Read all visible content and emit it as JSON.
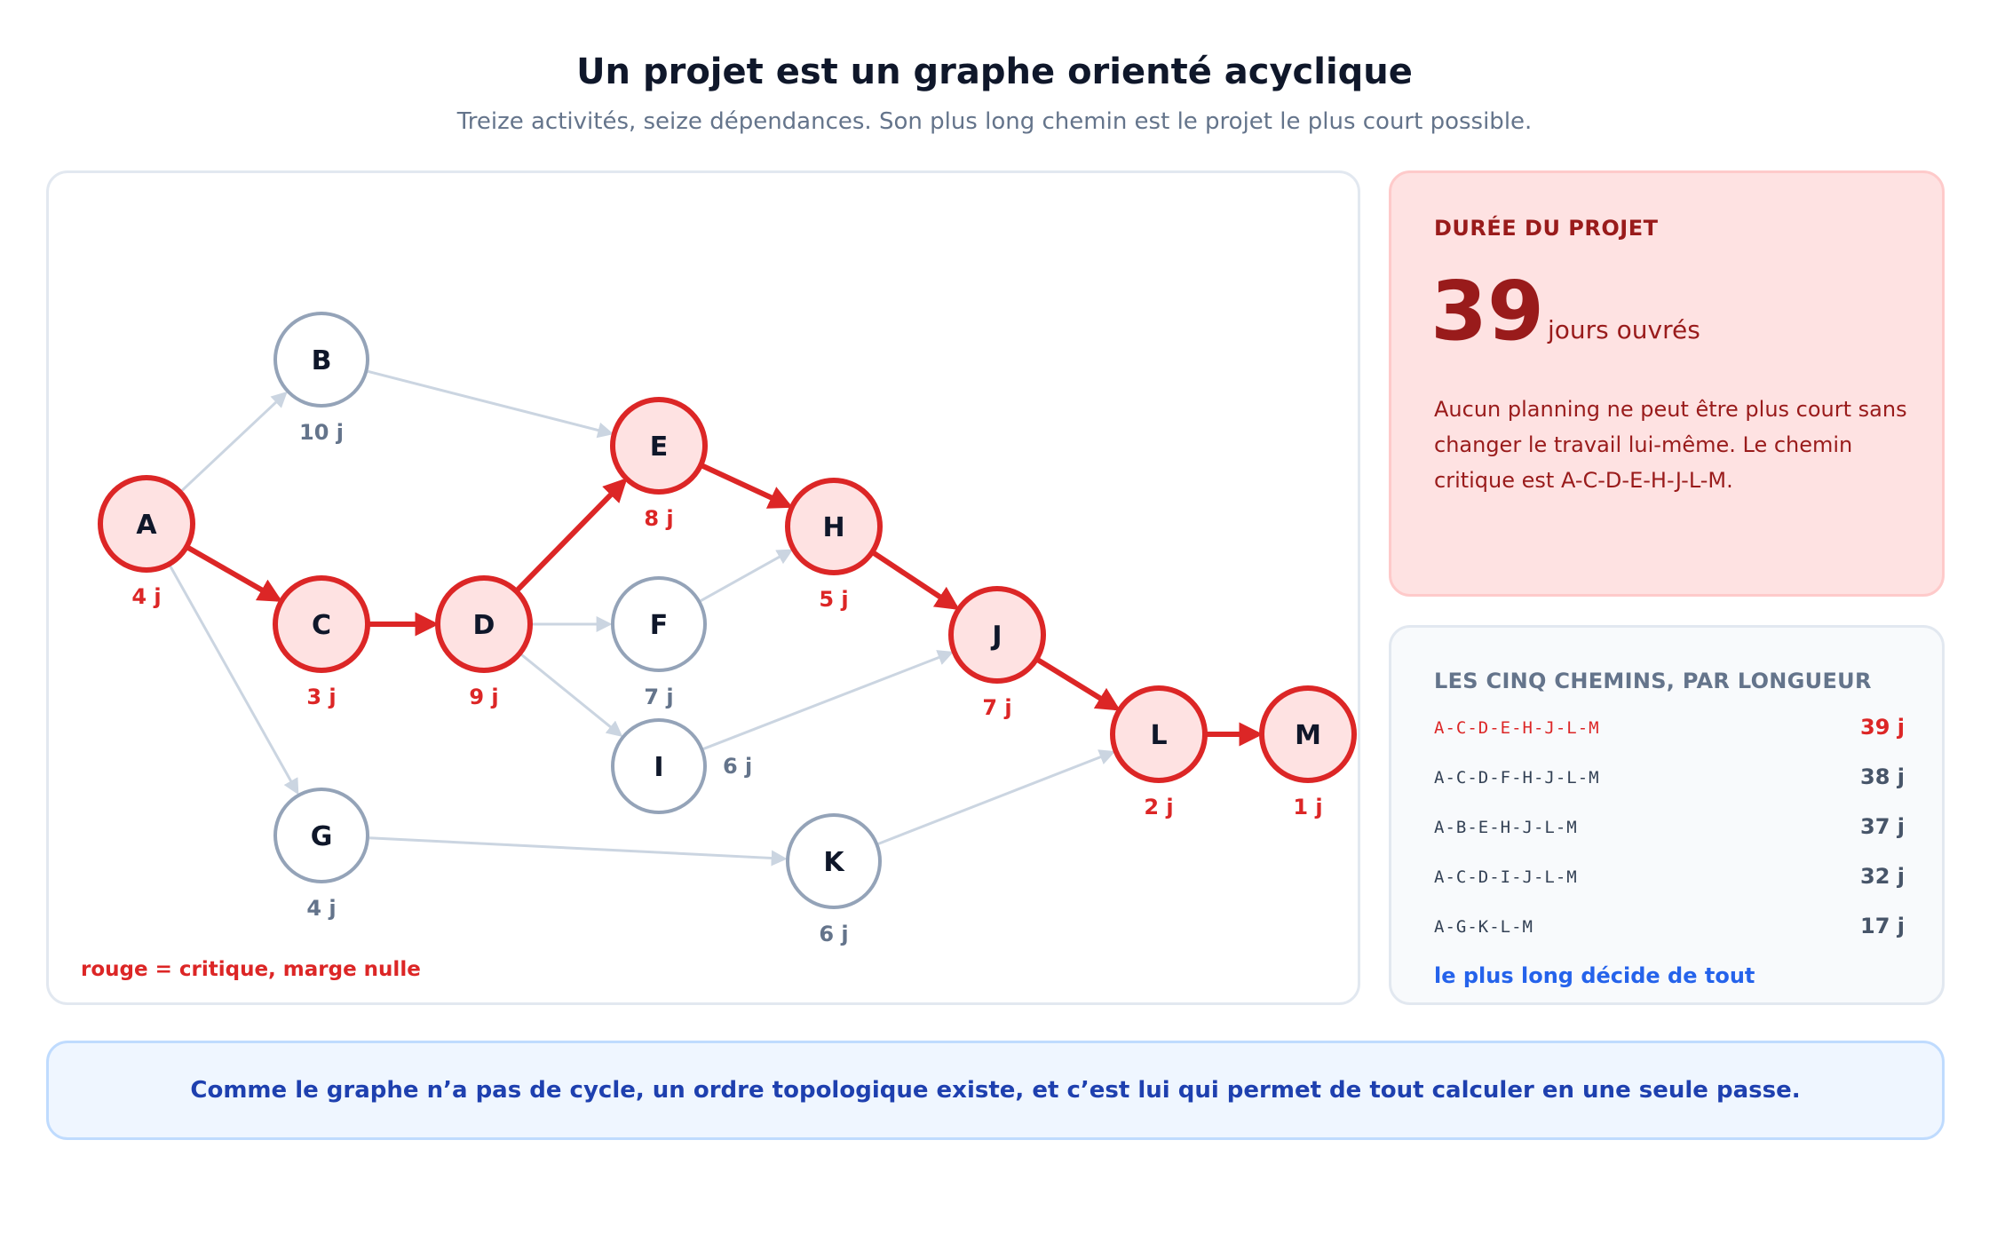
{
  "header": {
    "title": "Un projet est un graphe orienté acyclique",
    "subtitle": "Treize activités, seize dépendances. Son plus long chemin est le projet le plus court possible."
  },
  "graph": {
    "legend": "rouge = critique, marge nulle",
    "colors": {
      "critical_stroke": "#dc2626",
      "critical_fill": "#fee2e2",
      "normal_stroke": "#94a3b8",
      "normal_fill": "#ffffff",
      "edge_normal": "#cbd5e1",
      "label_normal": "#64748b"
    },
    "nodes": [
      {
        "id": "A",
        "duration": "4 j",
        "critical": true
      },
      {
        "id": "B",
        "duration": "10 j",
        "critical": false
      },
      {
        "id": "C",
        "duration": "3 j",
        "critical": true
      },
      {
        "id": "D",
        "duration": "9 j",
        "critical": true
      },
      {
        "id": "E",
        "duration": "8 j",
        "critical": true
      },
      {
        "id": "F",
        "duration": "7 j",
        "critical": false
      },
      {
        "id": "G",
        "duration": "4 j",
        "critical": false
      },
      {
        "id": "H",
        "duration": "5 j",
        "critical": true
      },
      {
        "id": "I",
        "duration": "6 j",
        "critical": false
      },
      {
        "id": "J",
        "duration": "7 j",
        "critical": true
      },
      {
        "id": "K",
        "duration": "6 j",
        "critical": false
      },
      {
        "id": "L",
        "duration": "2 j",
        "critical": true
      },
      {
        "id": "M",
        "duration": "1 j",
        "critical": true
      }
    ],
    "edges": [
      {
        "from": "A",
        "to": "B",
        "critical": false
      },
      {
        "from": "A",
        "to": "C",
        "critical": true
      },
      {
        "from": "A",
        "to": "G",
        "critical": false
      },
      {
        "from": "B",
        "to": "E",
        "critical": false
      },
      {
        "from": "C",
        "to": "D",
        "critical": true
      },
      {
        "from": "D",
        "to": "E",
        "critical": true
      },
      {
        "from": "D",
        "to": "F",
        "critical": false
      },
      {
        "from": "D",
        "to": "I",
        "critical": false
      },
      {
        "from": "E",
        "to": "H",
        "critical": true
      },
      {
        "from": "F",
        "to": "H",
        "critical": false
      },
      {
        "from": "G",
        "to": "K",
        "critical": false
      },
      {
        "from": "H",
        "to": "J",
        "critical": true
      },
      {
        "from": "I",
        "to": "J",
        "critical": false
      },
      {
        "from": "J",
        "to": "L",
        "critical": true
      },
      {
        "from": "K",
        "to": "L",
        "critical": false
      },
      {
        "from": "L",
        "to": "M",
        "critical": true
      }
    ]
  },
  "duration_card": {
    "label": "DURÉE DU PROJET",
    "value": "39",
    "unit": "jours ouvrés",
    "description": "Aucun planning ne peut être plus court sans changer le travail lui-même. Le chemin critique est A-C-D-E-H-J-L-M."
  },
  "paths_card": {
    "title": "LES CINQ CHEMINS, PAR LONGUEUR",
    "paths": [
      {
        "path": "A-C-D-E-H-J-L-M",
        "length": "39 j",
        "critical": true
      },
      {
        "path": "A-C-D-F-H-J-L-M",
        "length": "38 j",
        "critical": false
      },
      {
        "path": "A-B-E-H-J-L-M",
        "length": "37 j",
        "critical": false
      },
      {
        "path": "A-C-D-I-J-L-M",
        "length": "32 j",
        "critical": false
      },
      {
        "path": "A-G-K-L-M",
        "length": "17 j",
        "critical": false
      }
    ],
    "footer": "le plus long décide de tout"
  },
  "banner": {
    "text": "Comme le graphe n’a pas de cycle, un ordre topologique existe, et c’est lui qui permet de tout calculer en une seule passe."
  }
}
